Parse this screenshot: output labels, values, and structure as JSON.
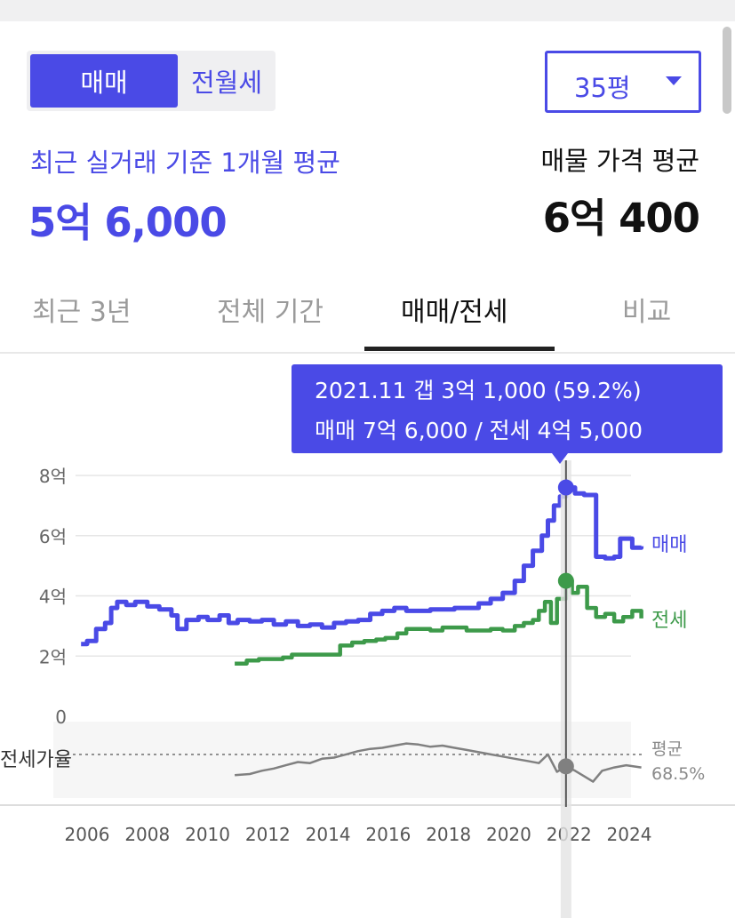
{
  "toggle": {
    "options": [
      "매매",
      "전월세"
    ],
    "selected": "매매"
  },
  "size_select": {
    "value": "35평"
  },
  "summary": {
    "recent_label": "최근 실거래 기준 1개월 평균",
    "recent_value": "5억 6,000",
    "listing_label": "매물 가격 평균",
    "listing_value": "6억 400"
  },
  "tabs": [
    "최근 3년",
    "전체 기간",
    "매매/전세",
    "비교"
  ],
  "active_tab": "매매/전세",
  "tooltip": {
    "line1": "2021.11  갭 3억 1,000 (59.2%)",
    "line2": "매매 7억 6,000 / 전세 4억 5,000"
  },
  "colors": {
    "accent": "#4a4ae6",
    "sale": "#4a4ae6",
    "jeonse": "#3d9a4a",
    "ratio": "#808080"
  },
  "chart_data": {
    "type": "line",
    "x_unit": "year",
    "xlim": [
      2005.7,
      2024.5
    ],
    "ylim": [
      0,
      8
    ],
    "y_unit": "억",
    "x_ticks": [
      "2006",
      "2008",
      "2010",
      "2012",
      "2014",
      "2016",
      "2018",
      "2020",
      "2022",
      "2024"
    ],
    "y_ticks": [
      "0",
      "2억",
      "4억",
      "6억",
      "8억"
    ],
    "highlight": {
      "x": 2021.9,
      "label": "2021.11"
    },
    "series": [
      {
        "name": "매매",
        "color": "#4a4ae6",
        "points": [
          [
            2005.8,
            2.4
          ],
          [
            2006.0,
            2.5
          ],
          [
            2006.3,
            2.9
          ],
          [
            2006.6,
            3.1
          ],
          [
            2006.8,
            3.6
          ],
          [
            2007.0,
            3.8
          ],
          [
            2007.3,
            3.7
          ],
          [
            2007.6,
            3.8
          ],
          [
            2008.0,
            3.65
          ],
          [
            2008.4,
            3.55
          ],
          [
            2008.8,
            3.35
          ],
          [
            2009.0,
            2.9
          ],
          [
            2009.3,
            3.2
          ],
          [
            2009.7,
            3.3
          ],
          [
            2010.0,
            3.2
          ],
          [
            2010.4,
            3.35
          ],
          [
            2010.7,
            3.1
          ],
          [
            2011.0,
            3.2
          ],
          [
            2011.4,
            3.15
          ],
          [
            2011.8,
            3.2
          ],
          [
            2012.2,
            3.05
          ],
          [
            2012.6,
            3.15
          ],
          [
            2013.0,
            3.0
          ],
          [
            2013.4,
            3.05
          ],
          [
            2013.8,
            2.95
          ],
          [
            2014.2,
            3.1
          ],
          [
            2014.6,
            3.15
          ],
          [
            2015.0,
            3.2
          ],
          [
            2015.4,
            3.4
          ],
          [
            2015.8,
            3.5
          ],
          [
            2016.2,
            3.6
          ],
          [
            2016.6,
            3.5
          ],
          [
            2017.0,
            3.5
          ],
          [
            2017.4,
            3.55
          ],
          [
            2017.8,
            3.55
          ],
          [
            2018.2,
            3.6
          ],
          [
            2018.6,
            3.6
          ],
          [
            2019.0,
            3.75
          ],
          [
            2019.4,
            3.9
          ],
          [
            2019.8,
            4.1
          ],
          [
            2020.2,
            4.5
          ],
          [
            2020.5,
            5.0
          ],
          [
            2020.8,
            5.5
          ],
          [
            2021.1,
            6.0
          ],
          [
            2021.3,
            6.5
          ],
          [
            2021.5,
            7.0
          ],
          [
            2021.7,
            7.3
          ],
          [
            2021.9,
            7.6
          ],
          [
            2022.2,
            7.4
          ],
          [
            2022.5,
            7.35
          ],
          [
            2022.8,
            7.35
          ],
          [
            2022.9,
            5.3
          ],
          [
            2023.2,
            5.25
          ],
          [
            2023.5,
            5.3
          ],
          [
            2023.7,
            5.9
          ],
          [
            2024.0,
            5.9
          ],
          [
            2024.1,
            5.6
          ],
          [
            2024.4,
            5.65
          ]
        ]
      },
      {
        "name": "전세",
        "color": "#3d9a4a",
        "points": [
          [
            2010.9,
            1.75
          ],
          [
            2011.3,
            1.85
          ],
          [
            2011.7,
            1.9
          ],
          [
            2012.1,
            1.9
          ],
          [
            2012.5,
            1.95
          ],
          [
            2012.8,
            2.05
          ],
          [
            2013.3,
            2.05
          ],
          [
            2013.8,
            2.05
          ],
          [
            2014.2,
            2.05
          ],
          [
            2014.4,
            2.35
          ],
          [
            2014.8,
            2.45
          ],
          [
            2015.2,
            2.5
          ],
          [
            2015.6,
            2.55
          ],
          [
            2015.9,
            2.6
          ],
          [
            2016.3,
            2.75
          ],
          [
            2016.6,
            2.9
          ],
          [
            2017.0,
            2.9
          ],
          [
            2017.4,
            2.85
          ],
          [
            2017.8,
            2.95
          ],
          [
            2018.2,
            2.95
          ],
          [
            2018.6,
            2.85
          ],
          [
            2019.0,
            2.85
          ],
          [
            2019.4,
            2.9
          ],
          [
            2019.8,
            2.85
          ],
          [
            2020.2,
            3.0
          ],
          [
            2020.5,
            3.1
          ],
          [
            2020.8,
            3.2
          ],
          [
            2021.0,
            3.5
          ],
          [
            2021.2,
            3.8
          ],
          [
            2021.4,
            3.1
          ],
          [
            2021.6,
            3.9
          ],
          [
            2021.9,
            4.5
          ],
          [
            2022.1,
            4.1
          ],
          [
            2022.3,
            4.3
          ],
          [
            2022.6,
            3.6
          ],
          [
            2022.9,
            3.3
          ],
          [
            2023.2,
            3.4
          ],
          [
            2023.5,
            3.15
          ],
          [
            2023.8,
            3.3
          ],
          [
            2024.1,
            3.5
          ],
          [
            2024.4,
            3.25
          ]
        ]
      },
      {
        "name": "전세가율",
        "color": "#808080",
        "average_label": "평균",
        "average_value": "68.5%",
        "points": [
          [
            2010.9,
            51
          ],
          [
            2011.4,
            52
          ],
          [
            2011.8,
            55
          ],
          [
            2012.2,
            57
          ],
          [
            2012.6,
            60
          ],
          [
            2013.0,
            63
          ],
          [
            2013.4,
            62
          ],
          [
            2013.8,
            66
          ],
          [
            2014.2,
            67
          ],
          [
            2014.6,
            70
          ],
          [
            2015.0,
            73
          ],
          [
            2015.4,
            75
          ],
          [
            2015.8,
            76
          ],
          [
            2016.2,
            78
          ],
          [
            2016.6,
            80
          ],
          [
            2017.0,
            79
          ],
          [
            2017.4,
            77
          ],
          [
            2017.8,
            78
          ],
          [
            2018.2,
            76
          ],
          [
            2018.6,
            74
          ],
          [
            2019.0,
            72
          ],
          [
            2019.4,
            70
          ],
          [
            2019.8,
            68
          ],
          [
            2020.2,
            66
          ],
          [
            2020.6,
            64
          ],
          [
            2021.0,
            62
          ],
          [
            2021.3,
            70
          ],
          [
            2021.6,
            54
          ],
          [
            2021.9,
            59
          ],
          [
            2022.2,
            55
          ],
          [
            2022.5,
            50
          ],
          [
            2022.8,
            45
          ],
          [
            2023.1,
            55
          ],
          [
            2023.5,
            58
          ],
          [
            2023.9,
            60
          ],
          [
            2024.4,
            58
          ]
        ]
      }
    ]
  }
}
